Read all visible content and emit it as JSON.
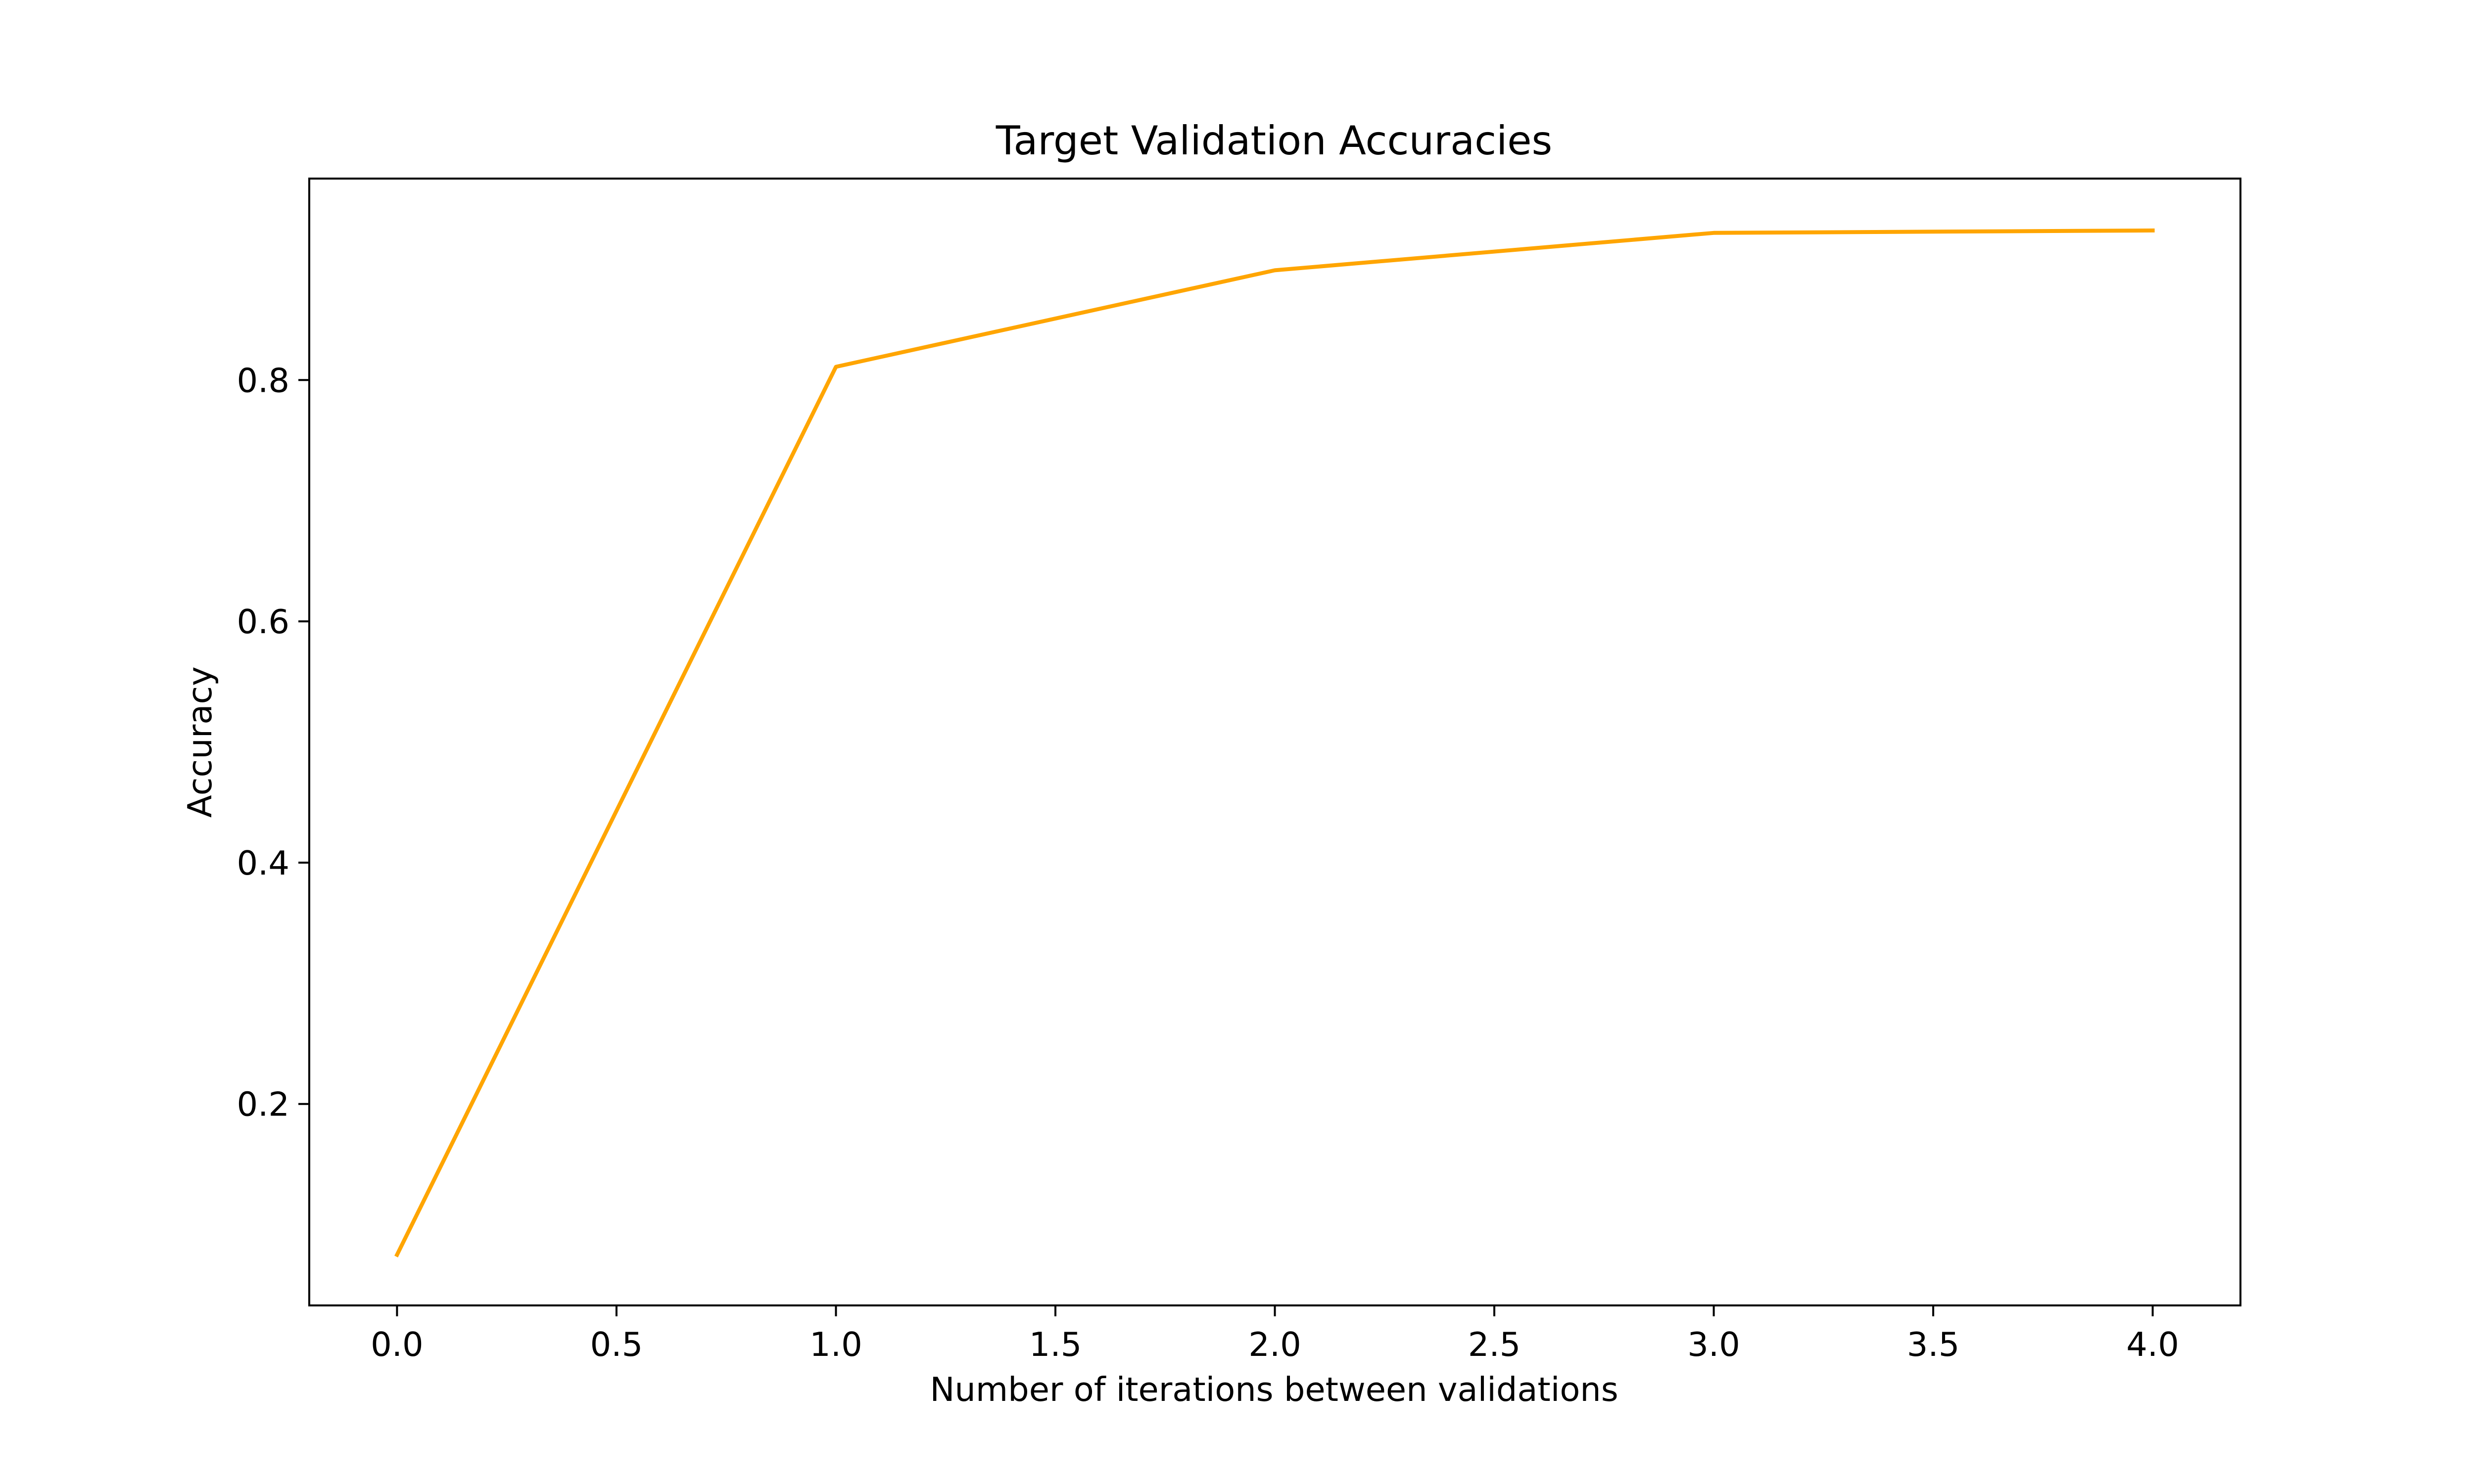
{
  "chart_data": {
    "type": "line",
    "title": "Target Validation Accuracies",
    "xlabel": "Number of iterations between validations",
    "ylabel": "Accuracy",
    "xlim": [
      -0.2,
      4.2
    ],
    "ylim": [
      0.033,
      0.967
    ],
    "xticks": [
      0.0,
      0.5,
      1.0,
      1.5,
      2.0,
      2.5,
      3.0,
      3.5,
      4.0
    ],
    "xtick_labels": [
      "0.0",
      "0.5",
      "1.0",
      "1.5",
      "2.0",
      "2.5",
      "3.0",
      "3.5",
      "4.0"
    ],
    "yticks": [
      0.2,
      0.4,
      0.6,
      0.8
    ],
    "ytick_labels": [
      "0.2",
      "0.4",
      "0.6",
      "0.8"
    ],
    "grid": false,
    "series": [
      {
        "color": "#ffa500",
        "x": [
          0,
          1,
          2,
          3,
          4
        ],
        "y": [
          0.075,
          0.811,
          0.891,
          0.922,
          0.924
        ]
      }
    ]
  }
}
